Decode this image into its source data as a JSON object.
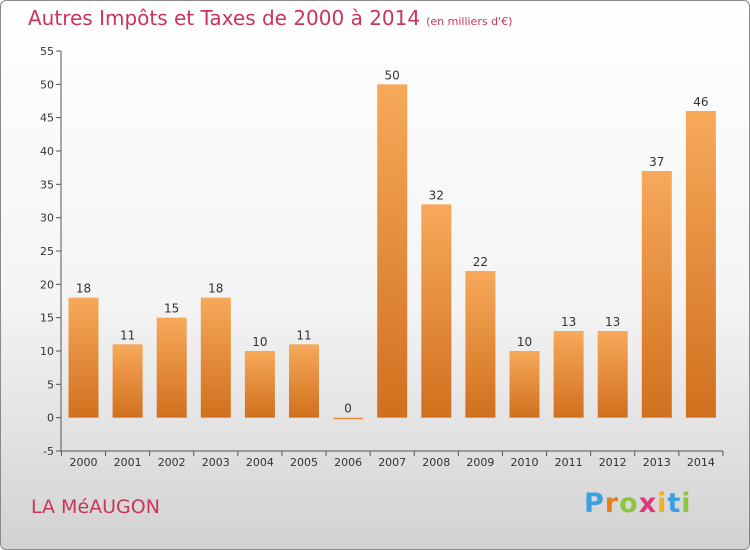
{
  "header": {
    "title": "Autres Impôts et Taxes de 2000 à 2014",
    "subtitle": "(en milliers d'€)"
  },
  "footer": {
    "place": "LA MéAUGON",
    "brand": "Proxiti",
    "brand_letters": [
      "P",
      "r",
      "o",
      "x",
      "i",
      "t",
      "i"
    ]
  },
  "colors": {
    "bar_light": "#f7a95a",
    "bar_dark": "#d0701e",
    "title": "#c8355a"
  },
  "chart_data": {
    "type": "bar",
    "title": "Autres Impôts et Taxes de 2000 à 2014",
    "subtitle": "(en milliers d'€)",
    "xlabel": "",
    "ylabel": "",
    "categories": [
      "2000",
      "2001",
      "2002",
      "2003",
      "2004",
      "2005",
      "2006",
      "2007",
      "2008",
      "2009",
      "2010",
      "2011",
      "2012",
      "2013",
      "2014"
    ],
    "values": [
      18,
      11,
      15,
      18,
      10,
      11,
      0,
      50,
      32,
      22,
      10,
      13,
      13,
      37,
      46
    ],
    "data_labels": [
      "18",
      "11",
      "15",
      "18",
      "10",
      "11",
      "0",
      "50",
      "32",
      "22",
      "10",
      "13",
      "13",
      "37",
      "46"
    ],
    "ylim": [
      -5,
      55
    ],
    "yticks": [
      -5,
      0,
      5,
      10,
      15,
      20,
      25,
      30,
      35,
      40,
      45,
      50,
      55
    ],
    "grid": false
  }
}
